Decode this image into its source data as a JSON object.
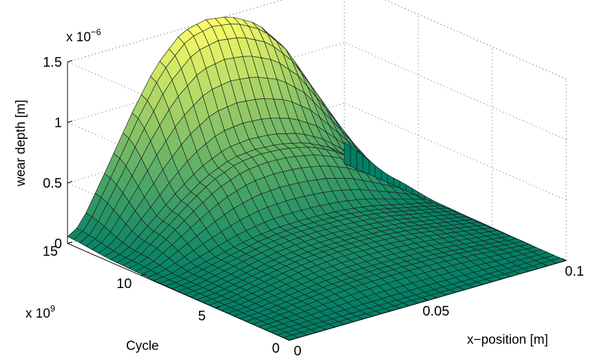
{
  "chart_data": {
    "type": "surface",
    "title": "",
    "xlabel": "x−position [m]",
    "ylabel": "Cycle",
    "zlabel": "wear depth [m]",
    "x_ticks": [
      "0",
      "0.05",
      "0.1"
    ],
    "y_ticks": [
      "0",
      "5",
      "10",
      "15"
    ],
    "z_ticks": [
      "0",
      "0.5",
      "1",
      "1.5"
    ],
    "y_multiplier": {
      "base": "x 10",
      "exponent": "9"
    },
    "z_multiplier": {
      "base": "x 10",
      "exponent": "−6"
    },
    "xlim": [
      0,
      0.1
    ],
    "ylim": [
      0,
      15
    ],
    "zlim": [
      0,
      1.5
    ],
    "grid": true,
    "colormap": "summer",
    "colormap_low": "#008066",
    "colormap_high": "#ffff66",
    "x_samples": 30,
    "y_samples": 36,
    "profile_x": [
      0.0,
      0.008,
      0.017,
      0.025,
      0.033,
      0.042,
      0.05,
      0.058,
      0.067,
      0.075,
      0.083,
      0.092,
      0.1
    ],
    "profile_z": [
      0.0,
      0.08,
      0.35,
      0.6,
      0.82,
      0.97,
      1.0,
      0.98,
      0.9,
      0.75,
      0.52,
      0.25,
      0.0
    ],
    "cycle_steps": [
      {
        "cycle_start": 0,
        "cycle_end": 0.6,
        "peak_wear_start": 0.0,
        "peak_wear_end": 0.0
      },
      {
        "cycle_start": 0.6,
        "cycle_end": 3.0,
        "peak_wear_start": 0.0,
        "peak_wear_end": 0.08
      },
      {
        "cycle_start": 3.0,
        "cycle_end": 6.0,
        "peak_wear_start": 0.08,
        "peak_wear_end": 0.14
      },
      {
        "cycle_start": 6.0,
        "cycle_end": 8.5,
        "peak_wear_start": 0.14,
        "peak_wear_end": 0.18
      },
      {
        "cycle_start": 8.5,
        "cycle_end": 11.5,
        "peak_wear_start": 0.18,
        "peak_wear_end": 0.62
      },
      {
        "cycle_start": 11.5,
        "cycle_end": 15.0,
        "peak_wear_start": 0.62,
        "peak_wear_end": 1.52
      }
    ]
  }
}
